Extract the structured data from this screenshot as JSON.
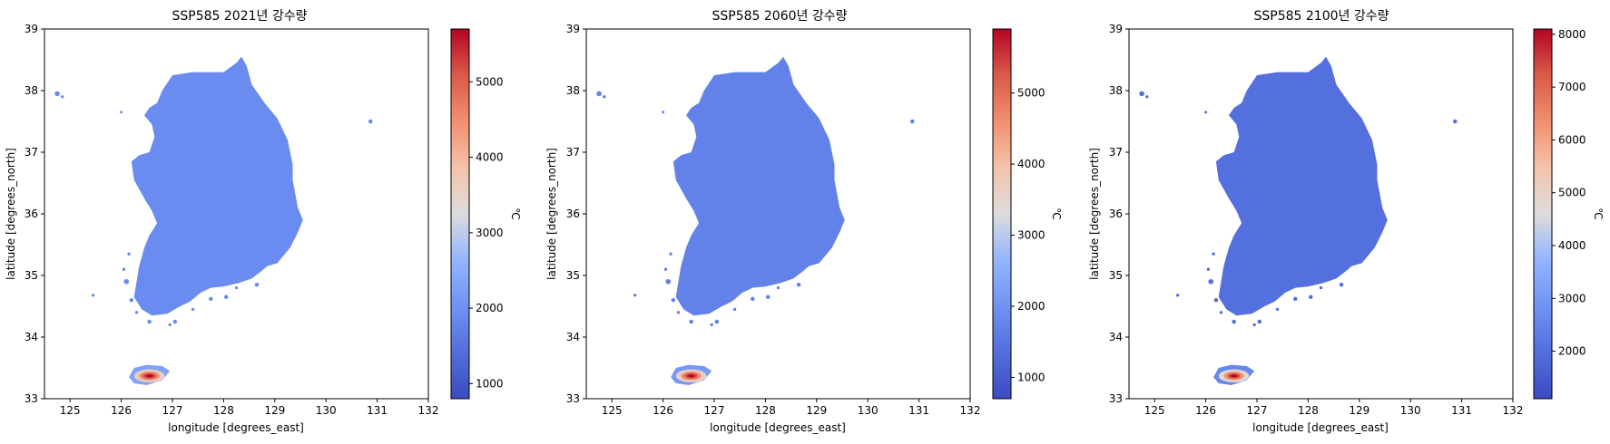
{
  "chart_data": [
    {
      "type": "heatmap",
      "title": "SSP585 2021년 강수량",
      "xlabel": "longitude [degrees_east]",
      "ylabel": "latitude [degrees_north]",
      "xlim": [
        124.5,
        132
      ],
      "ylim": [
        33,
        39
      ],
      "xticks": [
        125,
        126,
        127,
        128,
        129,
        130,
        131,
        132
      ],
      "yticks": [
        33,
        34,
        35,
        36,
        37,
        38,
        39
      ],
      "colorbar": {
        "label": "℃",
        "range": [
          800,
          5700
        ],
        "ticks": [
          1000,
          2000,
          3000,
          4000,
          5000
        ],
        "colormap": "coolwarm"
      },
      "field_summary": {
        "mainland_typical": 1900,
        "jeju_peak": 5700
      }
    },
    {
      "type": "heatmap",
      "title": "SSP585 2060년 강수량",
      "xlabel": "longitude [degrees_east]",
      "ylabel": "latitude [degrees_north]",
      "xlim": [
        124.5,
        132
      ],
      "ylim": [
        33,
        39
      ],
      "xticks": [
        125,
        126,
        127,
        128,
        129,
        130,
        131,
        132
      ],
      "yticks": [
        33,
        34,
        35,
        36,
        37,
        38,
        39
      ],
      "colorbar": {
        "label": "℃",
        "range": [
          700,
          5900
        ],
        "ticks": [
          1000,
          2000,
          3000,
          4000,
          5000
        ],
        "colormap": "coolwarm"
      },
      "field_summary": {
        "mainland_typical": 1700,
        "jeju_peak": 5900
      }
    },
    {
      "type": "heatmap",
      "title": "SSP585 2100년 강수량",
      "xlabel": "longitude [degrees_east]",
      "ylabel": "latitude [degrees_north]",
      "xlim": [
        124.5,
        132
      ],
      "ylim": [
        33,
        39
      ],
      "xticks": [
        125,
        126,
        127,
        128,
        129,
        130,
        131,
        132
      ],
      "yticks": [
        33,
        34,
        35,
        36,
        37,
        38,
        39
      ],
      "colorbar": {
        "label": "℃",
        "range": [
          1100,
          8100
        ],
        "ticks": [
          2000,
          3000,
          4000,
          5000,
          6000,
          7000,
          8000
        ],
        "colormap": "coolwarm"
      },
      "field_summary": {
        "mainland_typical": 2000,
        "jeju_peak": 8100
      }
    }
  ],
  "shapes": {
    "mainland": [
      [
        128.0,
        38.3
      ],
      [
        128.25,
        38.45
      ],
      [
        128.35,
        38.55
      ],
      [
        128.45,
        38.4
      ],
      [
        128.55,
        38.1
      ],
      [
        128.8,
        37.8
      ],
      [
        129.05,
        37.55
      ],
      [
        129.25,
        37.2
      ],
      [
        129.3,
        37.0
      ],
      [
        129.35,
        36.8
      ],
      [
        129.35,
        36.55
      ],
      [
        129.45,
        36.1
      ],
      [
        129.55,
        35.9
      ],
      [
        129.45,
        35.7
      ],
      [
        129.3,
        35.45
      ],
      [
        129.05,
        35.2
      ],
      [
        128.85,
        35.15
      ],
      [
        128.75,
        35.08
      ],
      [
        128.55,
        34.95
      ],
      [
        128.3,
        34.88
      ],
      [
        128.0,
        34.82
      ],
      [
        127.75,
        34.8
      ],
      [
        127.55,
        34.72
      ],
      [
        127.35,
        34.58
      ],
      [
        127.15,
        34.5
      ],
      [
        126.9,
        34.38
      ],
      [
        126.6,
        34.35
      ],
      [
        126.4,
        34.45
      ],
      [
        126.25,
        34.65
      ],
      [
        126.3,
        34.9
      ],
      [
        126.35,
        35.15
      ],
      [
        126.45,
        35.45
      ],
      [
        126.55,
        35.65
      ],
      [
        126.7,
        35.85
      ],
      [
        126.6,
        36.05
      ],
      [
        126.45,
        36.25
      ],
      [
        126.25,
        36.55
      ],
      [
        126.2,
        36.85
      ],
      [
        126.35,
        36.95
      ],
      [
        126.55,
        37.0
      ],
      [
        126.65,
        37.25
      ],
      [
        126.6,
        37.45
      ],
      [
        126.45,
        37.6
      ],
      [
        126.55,
        37.72
      ],
      [
        126.7,
        37.8
      ],
      [
        126.8,
        38.0
      ],
      [
        127.0,
        38.25
      ],
      [
        127.4,
        38.3
      ],
      [
        127.75,
        38.3
      ]
    ],
    "jeju": [
      [
        126.15,
        33.35
      ],
      [
        126.25,
        33.25
      ],
      [
        126.5,
        33.22
      ],
      [
        126.8,
        33.3
      ],
      [
        126.95,
        33.45
      ],
      [
        126.8,
        33.53
      ],
      [
        126.5,
        33.55
      ],
      [
        126.25,
        33.5
      ]
    ],
    "islands": [
      [
        124.75,
        37.95,
        0.05
      ],
      [
        124.85,
        37.9,
        0.03
      ],
      [
        126.0,
        37.65,
        0.02
      ],
      [
        125.45,
        34.68,
        0.03
      ],
      [
        130.87,
        37.5,
        0.04
      ],
      [
        126.1,
        34.9,
        0.05
      ],
      [
        126.2,
        34.6,
        0.04
      ],
      [
        126.55,
        34.25,
        0.04
      ],
      [
        127.05,
        34.25,
        0.04
      ],
      [
        127.4,
        34.45,
        0.03
      ],
      [
        127.75,
        34.62,
        0.04
      ],
      [
        128.05,
        34.65,
        0.04
      ],
      [
        128.25,
        34.8,
        0.03
      ],
      [
        128.65,
        34.85,
        0.04
      ],
      [
        126.15,
        35.35,
        0.03
      ],
      [
        126.05,
        35.1,
        0.03
      ],
      [
        126.3,
        34.4,
        0.03
      ],
      [
        126.95,
        34.2,
        0.03
      ]
    ]
  }
}
